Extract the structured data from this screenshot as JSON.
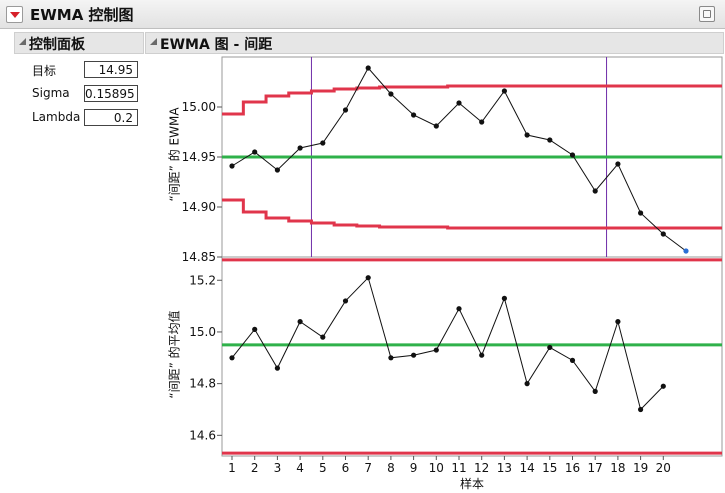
{
  "window": {
    "title": "EWMA 控制图"
  },
  "control_panel": {
    "title": "控制面板",
    "params": [
      {
        "label": "目标",
        "value": "14.95"
      },
      {
        "label": "Sigma",
        "value": "0.15895"
      },
      {
        "label": "Lambda",
        "value": "0.2"
      }
    ]
  },
  "chart_panel": {
    "title": "EWMA 图 - 间距"
  },
  "colors": {
    "limit": "#e0354b",
    "center": "#2fb14a",
    "marker": "#6f2da8",
    "point": "#111111",
    "last_point": "#2a6fd6"
  },
  "chart_data": [
    {
      "type": "line",
      "ylabel": "“间距” 的 EWMA",
      "ylim": [
        14.85,
        15.05
      ],
      "yticks": [
        14.85,
        14.9,
        14.95,
        15.0
      ],
      "x": [
        1,
        2,
        3,
        4,
        5,
        6,
        7,
        8,
        9,
        10,
        11,
        12,
        13,
        14,
        15,
        16,
        17,
        18,
        19,
        20,
        21
      ],
      "values": [
        14.941,
        14.955,
        14.937,
        14.959,
        14.964,
        14.997,
        15.039,
        15.013,
        14.992,
        14.981,
        15.004,
        14.985,
        15.016,
        14.972,
        14.967,
        14.952,
        14.916,
        14.943,
        14.894,
        14.873,
        14.856
      ],
      "center": 14.95,
      "ucl_steps": [
        14.993,
        15.005,
        15.011,
        15.014,
        15.016,
        15.018,
        15.019,
        15.02,
        15.02,
        15.02,
        15.021,
        15.021,
        15.021,
        15.021,
        15.021,
        15.021,
        15.021,
        15.021,
        15.021,
        15.021,
        15.021
      ],
      "lcl_steps": [
        14.907,
        14.895,
        14.889,
        14.886,
        14.884,
        14.882,
        14.881,
        14.88,
        14.88,
        14.88,
        14.879,
        14.879,
        14.879,
        14.879,
        14.879,
        14.879,
        14.879,
        14.879,
        14.879,
        14.879,
        14.879
      ],
      "markers_x": [
        4,
        17
      ]
    },
    {
      "type": "line",
      "ylabel": "“间距” 的平均值",
      "xlabel": "样本",
      "xticks": [
        1,
        2,
        3,
        4,
        5,
        6,
        7,
        8,
        9,
        10,
        11,
        12,
        13,
        14,
        15,
        16,
        17,
        18,
        19,
        20
      ],
      "ylim": [
        14.52,
        15.29
      ],
      "yticks": [
        14.6,
        14.8,
        15.0,
        15.2
      ],
      "x": [
        1,
        2,
        3,
        4,
        5,
        6,
        7,
        8,
        9,
        10,
        11,
        12,
        13,
        14,
        15,
        16,
        17,
        18,
        19,
        20
      ],
      "values": [
        14.9,
        15.01,
        14.86,
        15.04,
        14.98,
        15.12,
        15.21,
        14.9,
        14.91,
        14.93,
        15.09,
        14.91,
        15.13,
        14.8,
        14.94,
        14.89,
        14.77,
        15.04,
        14.7,
        14.79
      ],
      "center": 14.95,
      "ucl": 15.279,
      "lcl": 14.531
    }
  ]
}
